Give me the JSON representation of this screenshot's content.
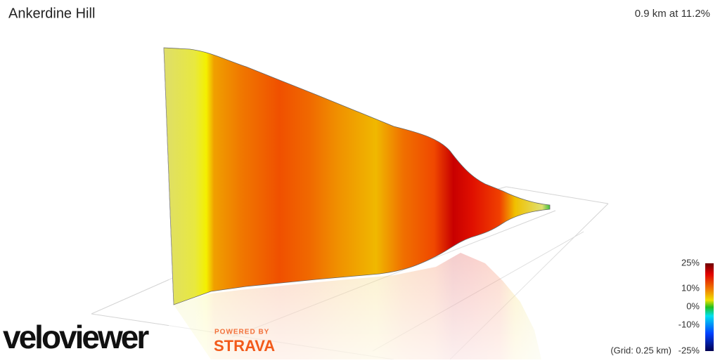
{
  "header": {
    "title": "Ankerdine Hill",
    "summary": "0.9 km at 11.2%"
  },
  "legend": {
    "labels": [
      "25%",
      "10%",
      "0%",
      "-10%",
      "-25%"
    ],
    "grid_note": "(Grid: 0.25 km)"
  },
  "branding": {
    "logo": "veloviewer",
    "powered_by": "POWERED BY",
    "partner": "STRAVA"
  }
}
